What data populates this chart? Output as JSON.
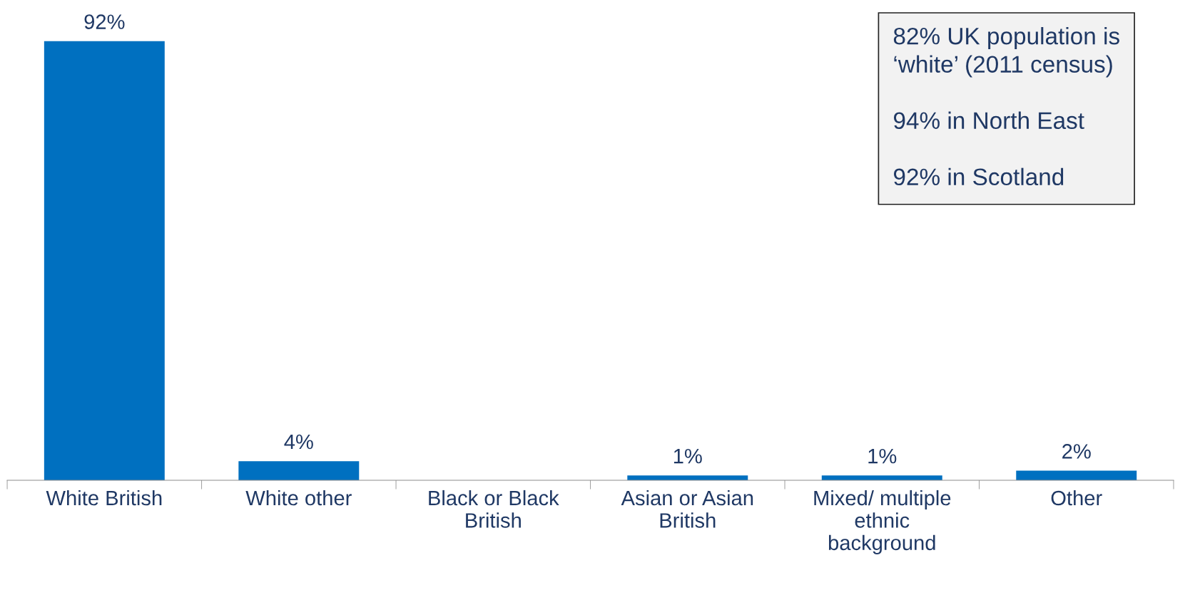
{
  "chart_data": {
    "type": "bar",
    "categories": [
      "White British",
      "White other",
      "Black or Black\nBritish",
      "Asian or Asian\nBritish",
      "Mixed/ multiple\nethnic\nbackground",
      "Other"
    ],
    "values": [
      92,
      4,
      0,
      1,
      1,
      2
    ],
    "value_labels": [
      "92%",
      "4%",
      null,
      "1%",
      "1%",
      "2%"
    ],
    "color": "#0070c0",
    "grid": false,
    "legend": false,
    "annotations": [
      "82% UK population is\n‘white’ (2011 census)",
      "94% in North East",
      "92% in Scotland"
    ]
  }
}
